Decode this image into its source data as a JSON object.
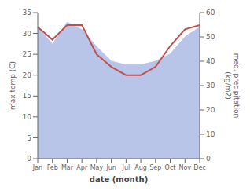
{
  "chart_data": {
    "type": "combo",
    "categories": [
      "Jan",
      "Feb",
      "Mar",
      "Apr",
      "May",
      "Jun",
      "Jul",
      "Aug",
      "Sep",
      "Oct",
      "Nov",
      "Dec"
    ],
    "xlabel": "date (month)",
    "ylabel": "max temp (C)",
    "y2label": "med. precipitation\n(kg/m2)",
    "ylim": [
      0,
      35
    ],
    "yticks": [
      0,
      5,
      10,
      15,
      20,
      25,
      30,
      35
    ],
    "y2lim": [
      0,
      60
    ],
    "y2ticks": [
      0,
      10,
      20,
      30,
      40,
      50,
      60
    ],
    "grid": false,
    "series": [
      {
        "type": "area",
        "axis": "y2",
        "color": "#b8c4e8",
        "values": [
          54.0,
          47.0,
          56.0,
          53.0,
          46.0,
          40.0,
          38.5,
          38.5,
          40.0,
          43.0,
          50.0,
          54.0
        ]
      },
      {
        "type": "line",
        "color": "#c0504d",
        "values": [
          31.5,
          28.5,
          32.0,
          32.0,
          25.0,
          22.0,
          20.0,
          20.0,
          22.0,
          27.0,
          31.0,
          32.0
        ]
      }
    ]
  }
}
